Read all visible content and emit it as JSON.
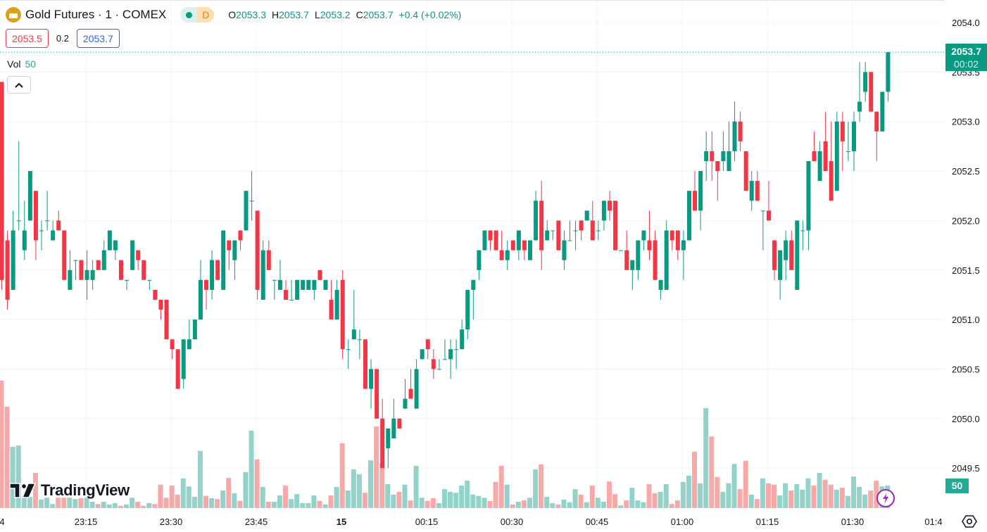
{
  "header": {
    "title": "Gold Futures · 1 · COMEX",
    "market_status_icon": "market-open-dot-icon",
    "data_flag": "D",
    "ohlc": {
      "o_label": "O",
      "o": "2053.3",
      "h_label": "H",
      "h": "2053.7",
      "l_label": "L",
      "l": "2053.2",
      "c_label": "C",
      "c": "2053.7",
      "change": "+0.4 (+0.02%)"
    }
  },
  "quote": {
    "bid": "2053.5",
    "spread": "0.2",
    "ask": "2053.7"
  },
  "volume_legend": {
    "label": "Vol",
    "value": "50"
  },
  "last_price_tag": {
    "price": "2053.7",
    "countdown": "00:02"
  },
  "volume_tag": "50",
  "brand": "TradingView",
  "colors": {
    "up": "#089981",
    "down": "#f23645",
    "up_volume": "#92d2c9",
    "down_volume": "#f7a9a7"
  },
  "chart_data": {
    "type": "candlestick",
    "title": "Gold Futures · 1 · COMEX",
    "interval_minutes": 1,
    "ylim": [
      2049.3,
      2054.2
    ],
    "y_ticks": [
      "2054.0",
      "2053.5",
      "2053.0",
      "2052.5",
      "2052.0",
      "2051.5",
      "2051.0",
      "2050.5",
      "2050.0",
      "2049.5"
    ],
    "x_ticks": [
      "4",
      "23:15",
      "23:30",
      "23:45",
      "15",
      "00:15",
      "00:30",
      "00:45",
      "01:00",
      "01:15",
      "01:30",
      "01:4"
    ],
    "last_price": 2053.7,
    "ohlc": [
      [
        2053.4,
        2053.4,
        2051.3,
        2051.4
      ],
      [
        2051.8,
        2051.9,
        2051.1,
        2051.2
      ],
      [
        2051.3,
        2052.1,
        2051.3,
        2051.9
      ],
      [
        2052.0,
        2052.8,
        2051.9,
        2052.0
      ],
      [
        2051.7,
        2052.2,
        2051.6,
        2051.9
      ],
      [
        2052.0,
        2052.5,
        2052.0,
        2052.5
      ],
      [
        2052.3,
        2052.3,
        2051.6,
        2051.8
      ],
      [
        2051.9,
        2052.0,
        2051.7,
        2051.9
      ],
      [
        2052.0,
        2052.3,
        2051.9,
        2052.0
      ],
      [
        2051.8,
        2052.0,
        2051.8,
        2051.9
      ],
      [
        2052.0,
        2052.1,
        2051.9,
        2051.9
      ],
      [
        2051.9,
        2051.9,
        2051.4,
        2051.4
      ],
      [
        2051.3,
        2051.7,
        2051.3,
        2051.5
      ],
      [
        2051.6,
        2051.6,
        2051.4,
        2051.6
      ],
      [
        2051.6,
        2051.6,
        2051.4,
        2051.4
      ],
      [
        2051.4,
        2051.7,
        2051.2,
        2051.5
      ],
      [
        2051.4,
        2051.6,
        2051.3,
        2051.5
      ],
      [
        2051.6,
        2051.6,
        2051.5,
        2051.5
      ],
      [
        2051.5,
        2051.8,
        2051.5,
        2051.7
      ],
      [
        2051.7,
        2051.9,
        2051.7,
        2051.9
      ],
      [
        2051.7,
        2051.8,
        2051.6,
        2051.8
      ],
      [
        2051.6,
        2051.6,
        2051.4,
        2051.4
      ],
      [
        2051.4,
        2051.4,
        2051.3,
        2051.4
      ],
      [
        2051.5,
        2051.8,
        2051.5,
        2051.8
      ],
      [
        2051.7,
        2051.7,
        2051.5,
        2051.6
      ],
      [
        2051.6,
        2051.6,
        2051.4,
        2051.4
      ],
      [
        2051.4,
        2051.4,
        2051.3,
        2051.4
      ],
      [
        2051.3,
        2051.3,
        2051.2,
        2051.2
      ],
      [
        2051.2,
        2051.2,
        2051.0,
        2051.1
      ],
      [
        2051.2,
        2051.2,
        2050.8,
        2050.8
      ],
      [
        2050.8,
        2050.8,
        2050.6,
        2050.7
      ],
      [
        2050.7,
        2050.7,
        2050.3,
        2050.3
      ],
      [
        2050.4,
        2050.8,
        2050.3,
        2050.8
      ],
      [
        2050.7,
        2051.0,
        2050.7,
        2050.8
      ],
      [
        2050.8,
        2051.0,
        2050.8,
        2051.0
      ],
      [
        2051.0,
        2051.6,
        2051.0,
        2051.4
      ],
      [
        2051.4,
        2051.4,
        2051.1,
        2051.3
      ],
      [
        2051.3,
        2051.7,
        2051.2,
        2051.6
      ],
      [
        2051.6,
        2051.6,
        2051.4,
        2051.4
      ],
      [
        2051.3,
        2051.9,
        2051.3,
        2051.9
      ],
      [
        2051.8,
        2051.8,
        2051.5,
        2051.7
      ],
      [
        2051.6,
        2051.8,
        2051.4,
        2051.8
      ],
      [
        2051.9,
        2051.9,
        2051.7,
        2051.8
      ],
      [
        2051.9,
        2052.3,
        2051.9,
        2052.3
      ],
      [
        2052.2,
        2052.5,
        2052.0,
        2052.2
      ],
      [
        2052.1,
        2052.1,
        2051.2,
        2051.3
      ],
      [
        2051.2,
        2051.8,
        2051.2,
        2051.7
      ],
      [
        2051.7,
        2051.8,
        2051.5,
        2051.5
      ],
      [
        2051.4,
        2051.4,
        2051.2,
        2051.4
      ],
      [
        2051.3,
        2051.6,
        2051.3,
        2051.4
      ],
      [
        2051.3,
        2051.4,
        2051.2,
        2051.2
      ],
      [
        2051.2,
        2051.4,
        2051.2,
        2051.2
      ],
      [
        2051.2,
        2051.4,
        2051.2,
        2051.4
      ],
      [
        2051.3,
        2051.4,
        2051.3,
        2051.4
      ],
      [
        2051.3,
        2051.4,
        2051.3,
        2051.4
      ],
      [
        2051.3,
        2051.4,
        2051.2,
        2051.4
      ],
      [
        2051.5,
        2051.5,
        2051.4,
        2051.4
      ],
      [
        2051.3,
        2051.4,
        2051.3,
        2051.4
      ],
      [
        2051.2,
        2051.4,
        2051.0,
        2051.0
      ],
      [
        2051.0,
        2051.4,
        2051.0,
        2051.3
      ],
      [
        2051.4,
        2051.5,
        2050.6,
        2050.7
      ],
      [
        2050.7,
        2050.8,
        2050.5,
        2050.7
      ],
      [
        2050.8,
        2051.3,
        2050.8,
        2050.9
      ],
      [
        2050.8,
        2050.9,
        2050.6,
        2050.8
      ],
      [
        2050.8,
        2050.8,
        2050.3,
        2050.3
      ],
      [
        2050.3,
        2050.6,
        2050.1,
        2050.5
      ],
      [
        2050.5,
        2050.5,
        2050.0,
        2050.0
      ],
      [
        2050.0,
        2050.2,
        2049.5,
        2049.5
      ],
      [
        2049.7,
        2049.9,
        2049.5,
        2049.9
      ],
      [
        2049.8,
        2050.2,
        2049.8,
        2050.0
      ],
      [
        2050.0,
        2050.0,
        2049.9,
        2049.9
      ],
      [
        2050.1,
        2050.4,
        2050.1,
        2050.2
      ],
      [
        2050.3,
        2050.5,
        2050.2,
        2050.2
      ],
      [
        2050.1,
        2050.6,
        2050.1,
        2050.5
      ],
      [
        2050.6,
        2050.7,
        2050.6,
        2050.7
      ],
      [
        2050.8,
        2050.8,
        2050.6,
        2050.7
      ],
      [
        2050.6,
        2050.7,
        2050.4,
        2050.5
      ],
      [
        2050.5,
        2050.6,
        2050.5,
        2050.5
      ],
      [
        2050.6,
        2050.8,
        2050.6,
        2050.6
      ],
      [
        2050.6,
        2050.8,
        2050.4,
        2050.7
      ],
      [
        2050.7,
        2050.8,
        2050.5,
        2050.7
      ],
      [
        2050.7,
        2051.0,
        2050.7,
        2050.9
      ],
      [
        2050.9,
        2051.3,
        2050.8,
        2051.3
      ],
      [
        2051.3,
        2051.4,
        2051.0,
        2051.4
      ],
      [
        2051.5,
        2051.7,
        2051.4,
        2051.7
      ],
      [
        2051.7,
        2051.9,
        2051.7,
        2051.9
      ],
      [
        2051.9,
        2051.9,
        2051.7,
        2051.8
      ],
      [
        2051.9,
        2051.9,
        2051.7,
        2051.7
      ],
      [
        2051.7,
        2051.9,
        2051.6,
        2051.6
      ],
      [
        2051.6,
        2051.8,
        2051.5,
        2051.7
      ],
      [
        2051.8,
        2051.8,
        2051.7,
        2051.7
      ],
      [
        2051.7,
        2051.9,
        2051.6,
        2051.9
      ],
      [
        2051.8,
        2051.8,
        2051.6,
        2051.7
      ],
      [
        2051.6,
        2051.8,
        2051.6,
        2051.8
      ],
      [
        2051.8,
        2052.3,
        2051.8,
        2052.2
      ],
      [
        2052.2,
        2052.4,
        2051.5,
        2051.7
      ],
      [
        2051.8,
        2052.0,
        2051.8,
        2051.9
      ],
      [
        2051.9,
        2051.9,
        2051.8,
        2051.9
      ],
      [
        2052.0,
        2052.0,
        2051.7,
        2051.7
      ],
      [
        2051.6,
        2051.9,
        2051.5,
        2051.8
      ],
      [
        2051.8,
        2052.0,
        2051.8,
        2051.8
      ],
      [
        2051.9,
        2052.0,
        2051.7,
        2051.9
      ],
      [
        2052.0,
        2052.0,
        2051.8,
        2051.9
      ],
      [
        2052.0,
        2052.1,
        2052.0,
        2052.1
      ],
      [
        2052.0,
        2052.2,
        2051.8,
        2051.8
      ],
      [
        2051.9,
        2052.0,
        2051.8,
        2051.9
      ],
      [
        2052.0,
        2052.2,
        2051.9,
        2052.2
      ],
      [
        2052.2,
        2052.3,
        2052.0,
        2052.1
      ],
      [
        2052.2,
        2052.2,
        2051.7,
        2051.7
      ],
      [
        2051.7,
        2051.7,
        2051.7,
        2051.7
      ],
      [
        2051.7,
        2051.9,
        2051.5,
        2051.5
      ],
      [
        2051.5,
        2051.6,
        2051.3,
        2051.6
      ],
      [
        2051.5,
        2051.8,
        2051.4,
        2051.8
      ],
      [
        2051.8,
        2051.9,
        2051.7,
        2051.9
      ],
      [
        2051.8,
        2052.1,
        2051.6,
        2051.7
      ],
      [
        2051.8,
        2051.9,
        2051.4,
        2051.4
      ],
      [
        2051.3,
        2051.4,
        2051.2,
        2051.4
      ],
      [
        2051.3,
        2052.0,
        2051.3,
        2051.9
      ],
      [
        2051.9,
        2051.9,
        2051.7,
        2051.8
      ],
      [
        2051.9,
        2051.9,
        2051.6,
        2051.7
      ],
      [
        2051.7,
        2051.9,
        2051.4,
        2051.8
      ],
      [
        2051.8,
        2052.3,
        2051.8,
        2052.3
      ],
      [
        2052.3,
        2052.5,
        2052.1,
        2052.1
      ],
      [
        2052.1,
        2052.5,
        2051.9,
        2052.5
      ],
      [
        2052.6,
        2052.9,
        2052.4,
        2052.7
      ],
      [
        2052.7,
        2052.9,
        2052.4,
        2052.6
      ],
      [
        2052.6,
        2052.6,
        2052.2,
        2052.5
      ],
      [
        2052.6,
        2052.9,
        2052.5,
        2052.7
      ],
      [
        2052.5,
        2053.0,
        2052.5,
        2052.7
      ],
      [
        2052.7,
        2053.2,
        2052.6,
        2053.0
      ],
      [
        2053.0,
        2053.1,
        2052.7,
        2052.8
      ],
      [
        2052.7,
        2052.7,
        2052.3,
        2052.3
      ],
      [
        2052.2,
        2052.5,
        2052.1,
        2052.4
      ],
      [
        2052.4,
        2052.5,
        2052.2,
        2052.2
      ],
      [
        2052.1,
        2052.1,
        2051.7,
        2052.1
      ],
      [
        2052.1,
        2052.4,
        2052.0,
        2052.0
      ],
      [
        2051.8,
        2051.8,
        2051.4,
        2051.5
      ],
      [
        2051.4,
        2051.7,
        2051.2,
        2051.7
      ],
      [
        2051.6,
        2051.9,
        2051.4,
        2051.8
      ],
      [
        2051.8,
        2051.9,
        2051.5,
        2051.5
      ],
      [
        2051.3,
        2052.0,
        2051.3,
        2052.0
      ],
      [
        2051.9,
        2052.0,
        2051.7,
        2051.9
      ],
      [
        2051.9,
        2052.6,
        2051.7,
        2052.6
      ],
      [
        2052.7,
        2052.9,
        2052.6,
        2052.6
      ],
      [
        2052.4,
        2052.8,
        2052.4,
        2052.7
      ],
      [
        2052.8,
        2053.1,
        2052.5,
        2052.5
      ],
      [
        2052.6,
        2053.0,
        2052.2,
        2052.2
      ],
      [
        2052.3,
        2053.1,
        2052.3,
        2053.0
      ],
      [
        2053.0,
        2053.1,
        2052.5,
        2052.8
      ],
      [
        2052.7,
        2053.0,
        2052.6,
        2052.7
      ],
      [
        2052.7,
        2053.1,
        2052.5,
        2053.0
      ],
      [
        2053.1,
        2053.6,
        2053.0,
        2053.2
      ],
      [
        2053.3,
        2053.6,
        2053.2,
        2053.5
      ],
      [
        2053.5,
        2053.5,
        2053.1,
        2053.1
      ],
      [
        2053.1,
        2053.1,
        2052.6,
        2052.9
      ],
      [
        2052.9,
        2053.3,
        2052.9,
        2053.3
      ],
      [
        2053.3,
        2053.7,
        2053.2,
        2053.7
      ]
    ],
    "volume": [
      283,
      225,
      136,
      139,
      25,
      25,
      78,
      19,
      23,
      9,
      23,
      23,
      23,
      20,
      22,
      23,
      14,
      9,
      14,
      8,
      11,
      5,
      8,
      23,
      14,
      5,
      11,
      9,
      52,
      23,
      50,
      30,
      66,
      48,
      25,
      127,
      27,
      22,
      20,
      39,
      67,
      33,
      16,
      80,
      172,
      108,
      47,
      14,
      14,
      28,
      50,
      20,
      31,
      11,
      11,
      28,
      16,
      8,
      28,
      47,
      144,
      39,
      86,
      75,
      34,
      106,
      181,
      100,
      53,
      30,
      36,
      52,
      17,
      94,
      23,
      16,
      22,
      11,
      42,
      36,
      34,
      50,
      61,
      30,
      27,
      23,
      16,
      58,
      94,
      52,
      8,
      14,
      17,
      23,
      86,
      97,
      25,
      11,
      8,
      19,
      13,
      42,
      30,
      13,
      50,
      23,
      14,
      59,
      31,
      6,
      17,
      45,
      17,
      13,
      53,
      33,
      36,
      53,
      9,
      17,
      58,
      72,
      125,
      55,
      222,
      159,
      69,
      36,
      55,
      98,
      42,
      105,
      30,
      20,
      66,
      55,
      52,
      28,
      55,
      39,
      53,
      41,
      66,
      50,
      78,
      63,
      52,
      41,
      45,
      27,
      70,
      47,
      30,
      39,
      61,
      48,
      50
    ]
  }
}
